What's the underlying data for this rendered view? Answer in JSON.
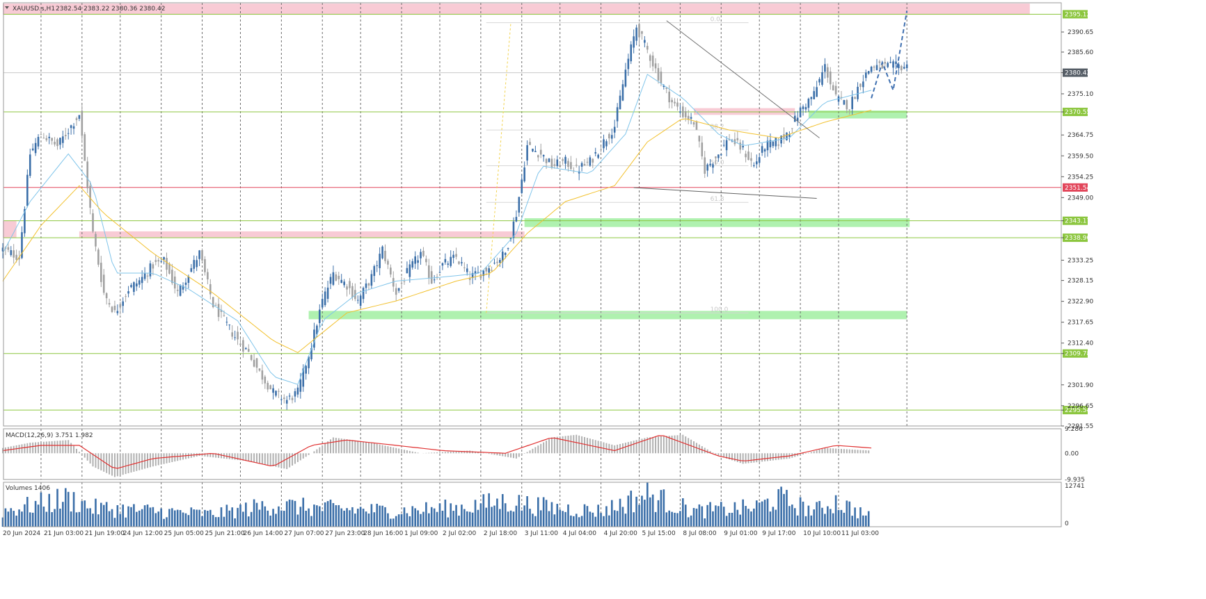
{
  "header": {
    "symbol": "XAUUSD.s,H1",
    "ohlc": "2382.54 2383.22 2380.36 2380.42",
    "dropdown_icon": "triangle-down-icon"
  },
  "colors": {
    "bull": "#3a6ea8",
    "bear": "#a0a0a0",
    "ma_fast": "#7fc4ea",
    "ma_slow": "#f2c12e",
    "support_line": "#8cc63f",
    "red_line": "#e2455a",
    "green_zone": "#a6f0a6",
    "pink_zone": "#f7c5d0",
    "macd_hist": "#b0b0b0",
    "macd_signal": "#e03030",
    "volume": "#3a6ea8",
    "forecast": "#3e6fb0"
  },
  "chart_data": {
    "type": "candlestick",
    "symbol": "XAUUSD.s",
    "timeframe": "H1",
    "price_ylim": [
      2291.55,
      2398.0
    ],
    "price_ticks": [
      "2390.65",
      "2385.60",
      "2380.42",
      "2375.10",
      "2370.55",
      "2364.75",
      "2359.50",
      "2354.25",
      "2349.00",
      "2343.17",
      "2338.90",
      "2333.25",
      "2328.15",
      "2322.90",
      "2317.65",
      "2312.40",
      "2309.78",
      "2301.90",
      "2296.65",
      "2295.54",
      "2291.55"
    ],
    "time_labels": [
      "20 Jun 2024",
      "21 Jun 03:00",
      "21 Jun 19:00",
      "24 Jun 12:00",
      "25 Jun 05:00",
      "25 Jun 21:00",
      "26 Jun 14:00",
      "27 Jun 07:00",
      "27 Jun 23:00",
      "28 Jun 16:00",
      "1 Jul 09:00",
      "2 Jul 02:00",
      "2 Jul 18:00",
      "3 Jul 11:00",
      "4 Jul 04:00",
      "4 Jul 20:00",
      "5 Jul 15:00",
      "8 Jul 08:00",
      "9 Jul 01:00",
      "9 Jul 17:00",
      "10 Jul 10:00",
      "11 Jul 03:00"
    ],
    "close_path": [
      [
        0,
        2336
      ],
      [
        6,
        2334
      ],
      [
        10,
        2360
      ],
      [
        14,
        2365
      ],
      [
        20,
        2362
      ],
      [
        24,
        2366
      ],
      [
        28,
        2370
      ],
      [
        33,
        2340
      ],
      [
        37,
        2325
      ],
      [
        41,
        2320
      ],
      [
        46,
        2326
      ],
      [
        50,
        2328
      ],
      [
        55,
        2332
      ],
      [
        59,
        2333
      ],
      [
        64,
        2325
      ],
      [
        68,
        2330
      ],
      [
        72,
        2335
      ],
      [
        77,
        2322
      ],
      [
        81,
        2318
      ],
      [
        86,
        2313
      ],
      [
        90,
        2310
      ],
      [
        94,
        2305
      ],
      [
        99,
        2300
      ],
      [
        104,
        2298
      ],
      [
        108,
        2300
      ],
      [
        113,
        2312
      ],
      [
        117,
        2323
      ],
      [
        121,
        2330
      ],
      [
        126,
        2327
      ],
      [
        130,
        2323
      ],
      [
        135,
        2329
      ],
      [
        139,
        2336
      ],
      [
        144,
        2325
      ],
      [
        148,
        2330
      ],
      [
        153,
        2335
      ],
      [
        157,
        2328
      ],
      [
        161,
        2332
      ],
      [
        166,
        2334
      ],
      [
        171,
        2329
      ],
      [
        175,
        2330
      ],
      [
        179,
        2332
      ],
      [
        184,
        2335
      ],
      [
        188,
        2345
      ],
      [
        192,
        2362
      ],
      [
        197,
        2360
      ],
      [
        201,
        2357
      ],
      [
        206,
        2358
      ],
      [
        210,
        2356
      ],
      [
        215,
        2358
      ],
      [
        219,
        2362
      ],
      [
        224,
        2367
      ],
      [
        228,
        2381
      ],
      [
        232,
        2392
      ],
      [
        236,
        2386
      ],
      [
        241,
        2378
      ],
      [
        245,
        2373
      ],
      [
        249,
        2370
      ],
      [
        253,
        2368
      ],
      [
        257,
        2356
      ],
      [
        262,
        2360
      ],
      [
        266,
        2364
      ],
      [
        271,
        2361
      ],
      [
        275,
        2357
      ],
      [
        279,
        2362
      ],
      [
        284,
        2363
      ],
      [
        288,
        2366
      ],
      [
        292,
        2371
      ],
      [
        297,
        2375
      ],
      [
        301,
        2382
      ],
      [
        305,
        2374
      ],
      [
        310,
        2372
      ],
      [
        314,
        2378
      ],
      [
        318,
        2382
      ]
    ],
    "ma_fast_path": [
      [
        0,
        2335
      ],
      [
        10,
        2348
      ],
      [
        24,
        2360
      ],
      [
        33,
        2352
      ],
      [
        41,
        2330
      ],
      [
        55,
        2330
      ],
      [
        68,
        2326
      ],
      [
        86,
        2318
      ],
      [
        99,
        2304
      ],
      [
        108,
        2302
      ],
      [
        117,
        2318
      ],
      [
        130,
        2325
      ],
      [
        144,
        2328
      ],
      [
        161,
        2329
      ],
      [
        175,
        2330
      ],
      [
        188,
        2340
      ],
      [
        197,
        2357
      ],
      [
        215,
        2355
      ],
      [
        228,
        2365
      ],
      [
        236,
        2380
      ],
      [
        249,
        2374
      ],
      [
        262,
        2365
      ],
      [
        271,
        2362
      ],
      [
        288,
        2364
      ],
      [
        301,
        2373
      ],
      [
        318,
        2376
      ]
    ],
    "ma_slow_path": [
      [
        0,
        2328
      ],
      [
        14,
        2342
      ],
      [
        28,
        2352
      ],
      [
        37,
        2345
      ],
      [
        55,
        2335
      ],
      [
        77,
        2325
      ],
      [
        99,
        2313
      ],
      [
        108,
        2310
      ],
      [
        126,
        2320
      ],
      [
        144,
        2323
      ],
      [
        166,
        2328
      ],
      [
        179,
        2330
      ],
      [
        192,
        2340
      ],
      [
        206,
        2348
      ],
      [
        224,
        2352
      ],
      [
        236,
        2363
      ],
      [
        249,
        2369
      ],
      [
        266,
        2366
      ],
      [
        284,
        2364
      ],
      [
        301,
        2368
      ],
      [
        318,
        2371
      ]
    ],
    "levels": [
      {
        "price": 2395.12,
        "label": "2395.12",
        "kind": "support"
      },
      {
        "price": 2370.55,
        "label": "2370.55",
        "kind": "support"
      },
      {
        "price": 2351.54,
        "label": "2351.54",
        "kind": "red"
      },
      {
        "price": 2343.17,
        "label": "2343.17",
        "kind": "support"
      },
      {
        "price": 2338.9,
        "label": "2338.90",
        "kind": "support"
      },
      {
        "price": 2309.78,
        "label": "2309.78",
        "kind": "support"
      },
      {
        "price": 2295.54,
        "label": "2295.54",
        "kind": "support"
      }
    ],
    "current_price_label": "2380.42",
    "zones": [
      {
        "kind": "pink",
        "t0": 0,
        "t1": 376,
        "p0": 2395.0,
        "p1": 2397.8
      },
      {
        "kind": "pink",
        "t0": 0,
        "t1": 5,
        "p0": 2338.9,
        "p1": 2343.1
      },
      {
        "kind": "pink",
        "t0": 28,
        "t1": 191,
        "p0": 2339.0,
        "p1": 2340.5
      },
      {
        "kind": "pink",
        "t0": 253,
        "t1": 290,
        "p0": 2369.8,
        "p1": 2371.5
      },
      {
        "kind": "green",
        "t0": 191,
        "t1": 332,
        "p0": 2341.6,
        "p1": 2343.8
      },
      {
        "kind": "green",
        "t0": 112,
        "t1": 331,
        "p0": 2318.4,
        "p1": 2320.5
      },
      {
        "kind": "green",
        "t0": 295,
        "t1": 331,
        "p0": 2368.9,
        "p1": 2370.9
      }
    ],
    "fib_labels": [
      "0.0",
      "38.2",
      "50.0",
      "61.8",
      "100.0"
    ],
    "fib_prices": [
      2393.0,
      2366.0,
      2357.0,
      2347.8,
      2320.0
    ],
    "forecast_path": [
      [
        318,
        2374
      ],
      [
        322,
        2383
      ],
      [
        326,
        2376
      ],
      [
        331,
        2396
      ]
    ],
    "macd": {
      "label": "MACD(12,26,9) 3.751 1.982",
      "ylim": [
        -9.935,
        9.286
      ],
      "ticks": [
        "9.286",
        "0.00",
        "-9.935"
      ],
      "hist_path": [
        [
          0,
          2
        ],
        [
          10,
          4
        ],
        [
          24,
          5
        ],
        [
          33,
          -5
        ],
        [
          41,
          -9
        ],
        [
          55,
          -5
        ],
        [
          72,
          -1
        ],
        [
          90,
          -3
        ],
        [
          104,
          -6
        ],
        [
          113,
          0
        ],
        [
          121,
          6
        ],
        [
          135,
          4
        ],
        [
          153,
          0
        ],
        [
          171,
          1
        ],
        [
          188,
          -2
        ],
        [
          201,
          6
        ],
        [
          210,
          7
        ],
        [
          224,
          3
        ],
        [
          236,
          6
        ],
        [
          249,
          7
        ],
        [
          262,
          -1
        ],
        [
          271,
          -4
        ],
        [
          288,
          -2
        ],
        [
          301,
          2
        ],
        [
          318,
          1
        ]
      ],
      "signal_path": [
        [
          0,
          1
        ],
        [
          14,
          3
        ],
        [
          28,
          3
        ],
        [
          41,
          -6
        ],
        [
          55,
          -2
        ],
        [
          77,
          0
        ],
        [
          99,
          -5
        ],
        [
          113,
          3
        ],
        [
          126,
          5
        ],
        [
          144,
          3
        ],
        [
          161,
          1
        ],
        [
          184,
          0
        ],
        [
          201,
          6
        ],
        [
          224,
          1
        ],
        [
          241,
          7
        ],
        [
          262,
          -1
        ],
        [
          271,
          -3
        ],
        [
          288,
          -1
        ],
        [
          305,
          3
        ],
        [
          318,
          2
        ]
      ]
    },
    "volume": {
      "label": "Volumes 1406",
      "ylim": [
        0,
        12741
      ],
      "ticks": [
        "12741",
        "0"
      ],
      "profile": [
        [
          0,
          5000
        ],
        [
          24,
          9000
        ],
        [
          33,
          6000
        ],
        [
          55,
          5000
        ],
        [
          77,
          4000
        ],
        [
          99,
          7000
        ],
        [
          113,
          6000
        ],
        [
          144,
          5000
        ],
        [
          166,
          6000
        ],
        [
          184,
          8000
        ],
        [
          201,
          6000
        ],
        [
          219,
          5000
        ],
        [
          236,
          10000
        ],
        [
          253,
          5000
        ],
        [
          275,
          6000
        ],
        [
          284,
          9000
        ],
        [
          297,
          5000
        ],
        [
          305,
          8000
        ],
        [
          318,
          3000
        ]
      ]
    }
  }
}
